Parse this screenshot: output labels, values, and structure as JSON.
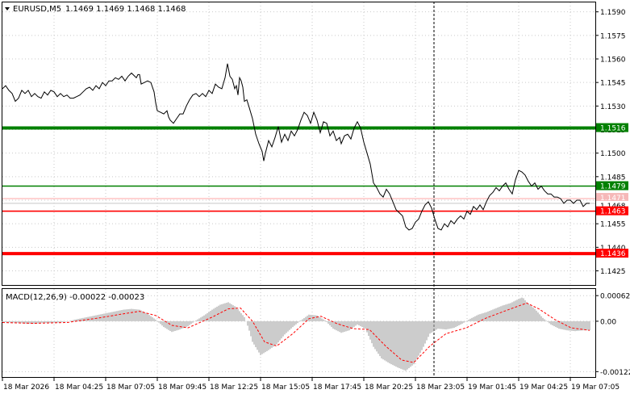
{
  "header": {
    "symbol_label": "EURUSD,M5",
    "ohlc_label": "1.1469 1.1469 1.1468 1.1468"
  },
  "colors": {
    "background": "#ffffff",
    "grid": "#c9c9c9",
    "price_line": "#000000",
    "green_level": "#008000",
    "red_level": "#ff0000",
    "macd_histogram": "#c0c0c0",
    "macd_signal": "#ff0000"
  },
  "price_axis": {
    "ticks": [
      "1.1590",
      "1.1575",
      "1.1560",
      "1.1545",
      "1.1530",
      "1.1515",
      "1.1500",
      "1.1485",
      "1.1470",
      "1.1455",
      "1.1440",
      "1.1425"
    ]
  },
  "levels": [
    {
      "value": "1.1516",
      "color": "green",
      "weight": "thick"
    },
    {
      "value": "1.1479",
      "color": "green",
      "weight": "thin"
    },
    {
      "value": "1.1471",
      "color": "red",
      "weight": "faint"
    },
    {
      "value": "1.1468",
      "color": "gray",
      "weight": "current"
    },
    {
      "value": "1.1463",
      "color": "red",
      "weight": "thin"
    },
    {
      "value": "1.1436",
      "color": "red",
      "weight": "thick"
    }
  ],
  "time_axis": {
    "labels": [
      "18 Mar 2026",
      "18 Mar 04:25",
      "18 Mar 07:05",
      "18 Mar 09:45",
      "18 Mar 12:25",
      "18 Mar 15:05",
      "18 Mar 17:45",
      "18 Mar 20:25",
      "18 Mar 23:05",
      "19 Mar 01:45",
      "19 Mar 04:25",
      "19 Mar 07:05"
    ]
  },
  "macd": {
    "title": "MACD(12,26,9) -0.00022 -0.00023",
    "ticks": [
      "0.00062",
      "0.00",
      "-0.00122"
    ]
  },
  "chart_data": [
    {
      "type": "line",
      "x_axis": "time",
      "x": [
        "18 Mar 2026",
        "18 Mar 04:25",
        "18 Mar 07:05",
        "18 Mar 09:45",
        "18 Mar 12:25",
        "18 Mar 15:05",
        "18 Mar 17:45",
        "18 Mar 20:25",
        "18 Mar 23:05",
        "19 Mar 01:45",
        "19 Mar 04:25",
        "19 Mar 07:05"
      ],
      "price_path": [
        [
          0,
          1.1541
        ],
        [
          4,
          1.1543
        ],
        [
          8,
          1.154
        ],
        [
          12,
          1.1538
        ],
        [
          16,
          1.1533
        ],
        [
          20,
          1.1535
        ],
        [
          24,
          1.154
        ],
        [
          28,
          1.1538
        ],
        [
          32,
          1.154
        ],
        [
          36,
          1.1536
        ],
        [
          40,
          1.1538
        ],
        [
          44,
          1.1536
        ],
        [
          48,
          1.1535
        ],
        [
          52,
          1.1539
        ],
        [
          56,
          1.1537
        ],
        [
          60,
          1.154
        ],
        [
          64,
          1.1539
        ],
        [
          68,
          1.1536
        ],
        [
          72,
          1.1538
        ],
        [
          76,
          1.1536
        ],
        [
          80,
          1.1537
        ],
        [
          84,
          1.1535
        ],
        [
          88,
          1.1535
        ],
        [
          92,
          1.1536
        ],
        [
          96,
          1.1537
        ],
        [
          100,
          1.1539
        ],
        [
          104,
          1.1541
        ],
        [
          108,
          1.1542
        ],
        [
          112,
          1.154
        ],
        [
          116,
          1.1543
        ],
        [
          120,
          1.1541
        ],
        [
          124,
          1.1545
        ],
        [
          128,
          1.1543
        ],
        [
          132,
          1.1546
        ],
        [
          136,
          1.1546
        ],
        [
          140,
          1.1548
        ],
        [
          144,
          1.1547
        ],
        [
          148,
          1.1549
        ],
        [
          152,
          1.1546
        ],
        [
          156,
          1.1549
        ],
        [
          160,
          1.1551
        ],
        [
          164,
          1.1549
        ],
        [
          166,
          1.1548
        ],
        [
          168,
          1.155
        ],
        [
          170,
          1.155
        ],
        [
          172,
          1.1544
        ],
        [
          176,
          1.1545
        ],
        [
          180,
          1.1546
        ],
        [
          184,
          1.1545
        ],
        [
          188,
          1.1539
        ],
        [
          190,
          1.1532
        ],
        [
          192,
          1.1527
        ],
        [
          196,
          1.1526
        ],
        [
          200,
          1.1525
        ],
        [
          204,
          1.1527
        ],
        [
          206,
          1.1523
        ],
        [
          208,
          1.1521
        ],
        [
          212,
          1.1519
        ],
        [
          216,
          1.1522
        ],
        [
          220,
          1.1525
        ],
        [
          224,
          1.1525
        ],
        [
          228,
          1.153
        ],
        [
          232,
          1.1534
        ],
        [
          236,
          1.1537
        ],
        [
          240,
          1.1538
        ],
        [
          244,
          1.1536
        ],
        [
          248,
          1.1538
        ],
        [
          252,
          1.1536
        ],
        [
          256,
          1.154
        ],
        [
          260,
          1.1538
        ],
        [
          264,
          1.1544
        ],
        [
          268,
          1.1542
        ],
        [
          272,
          1.1541
        ],
        [
          276,
          1.1548
        ],
        [
          279,
          1.1557
        ],
        [
          282,
          1.1549
        ],
        [
          285,
          1.1547
        ],
        [
          288,
          1.1541
        ],
        [
          290,
          1.1543
        ],
        [
          292,
          1.1537
        ],
        [
          294,
          1.1548
        ],
        [
          296,
          1.1546
        ],
        [
          298,
          1.1542
        ],
        [
          300,
          1.1533
        ],
        [
          303,
          1.1534
        ],
        [
          306,
          1.1529
        ],
        [
          310,
          1.1522
        ],
        [
          314,
          1.1512
        ],
        [
          318,
          1.1506
        ],
        [
          322,
          1.1501
        ],
        [
          324,
          1.1495
        ],
        [
          326,
          1.15
        ],
        [
          330,
          1.1508
        ],
        [
          334,
          1.1504
        ],
        [
          338,
          1.151
        ],
        [
          342,
          1.1517
        ],
        [
          346,
          1.1507
        ],
        [
          350,
          1.1512
        ],
        [
          354,
          1.1508
        ],
        [
          358,
          1.1514
        ],
        [
          362,
          1.1511
        ],
        [
          366,
          1.1515
        ],
        [
          370,
          1.1521
        ],
        [
          374,
          1.1526
        ],
        [
          378,
          1.1524
        ],
        [
          382,
          1.1519
        ],
        [
          386,
          1.1526
        ],
        [
          390,
          1.1521
        ],
        [
          394,
          1.1513
        ],
        [
          398,
          1.152
        ],
        [
          402,
          1.1519
        ],
        [
          406,
          1.1511
        ],
        [
          410,
          1.1514
        ],
        [
          414,
          1.1508
        ],
        [
          418,
          1.151
        ],
        [
          420,
          1.1506
        ],
        [
          424,
          1.1511
        ],
        [
          428,
          1.1512
        ],
        [
          432,
          1.1509
        ],
        [
          436,
          1.1516
        ],
        [
          440,
          1.152
        ],
        [
          444,
          1.1516
        ],
        [
          448,
          1.1507
        ],
        [
          452,
          1.15
        ],
        [
          456,
          1.1493
        ],
        [
          460,
          1.1481
        ],
        [
          464,
          1.1478
        ],
        [
          468,
          1.1474
        ],
        [
          472,
          1.1472
        ],
        [
          476,
          1.1477
        ],
        [
          480,
          1.1474
        ],
        [
          484,
          1.1469
        ],
        [
          488,
          1.1464
        ],
        [
          492,
          1.1462
        ],
        [
          496,
          1.146
        ],
        [
          500,
          1.1453
        ],
        [
          504,
          1.1451
        ],
        [
          508,
          1.1452
        ],
        [
          512,
          1.1456
        ],
        [
          516,
          1.1458
        ],
        [
          520,
          1.1463
        ],
        [
          524,
          1.1467
        ],
        [
          528,
          1.1469
        ],
        [
          532,
          1.1465
        ],
        [
          536,
          1.1458
        ],
        [
          540,
          1.1452
        ],
        [
          544,
          1.1451
        ],
        [
          548,
          1.1455
        ],
        [
          552,
          1.1453
        ],
        [
          556,
          1.1457
        ],
        [
          560,
          1.1455
        ],
        [
          564,
          1.1458
        ],
        [
          568,
          1.146
        ],
        [
          572,
          1.1458
        ],
        [
          576,
          1.1463
        ],
        [
          580,
          1.1461
        ],
        [
          584,
          1.1466
        ],
        [
          588,
          1.1464
        ],
        [
          592,
          1.1467
        ],
        [
          596,
          1.1464
        ],
        [
          600,
          1.1469
        ],
        [
          604,
          1.1473
        ],
        [
          608,
          1.1475
        ],
        [
          612,
          1.1478
        ],
        [
          616,
          1.1476
        ],
        [
          620,
          1.1479
        ],
        [
          624,
          1.1481
        ],
        [
          628,
          1.1477
        ],
        [
          632,
          1.1474
        ],
        [
          636,
          1.1483
        ],
        [
          640,
          1.1489
        ],
        [
          644,
          1.1488
        ],
        [
          648,
          1.1486
        ],
        [
          652,
          1.1482
        ],
        [
          656,
          1.1479
        ],
        [
          660,
          1.1481
        ],
        [
          664,
          1.1477
        ],
        [
          668,
          1.1479
        ],
        [
          672,
          1.1476
        ],
        [
          676,
          1.1474
        ],
        [
          680,
          1.1474
        ],
        [
          684,
          1.1472
        ],
        [
          688,
          1.1472
        ],
        [
          692,
          1.1471
        ],
        [
          696,
          1.1468
        ],
        [
          700,
          1.147
        ],
        [
          704,
          1.147
        ],
        [
          708,
          1.1468
        ],
        [
          712,
          1.147
        ],
        [
          716,
          1.147
        ],
        [
          720,
          1.1466
        ],
        [
          724,
          1.1468
        ],
        [
          728,
          1.1468
        ]
      ],
      "ylim": [
        1.1416,
        1.1596
      ]
    },
    {
      "type": "bar",
      "x_axis": "time",
      "ylim": [
        -0.00135,
        0.00078
      ],
      "histogram": [
        [
          0,
          -2e-05
        ],
        [
          10,
          -3e-05
        ],
        [
          20,
          -4e-05
        ],
        [
          30,
          -6e-05
        ],
        [
          40,
          -6e-05
        ],
        [
          50,
          -4e-05
        ],
        [
          60,
          -4e-05
        ],
        [
          70,
          -3e-05
        ],
        [
          80,
          -1e-05
        ],
        [
          90,
          4e-05
        ],
        [
          100,
          8e-05
        ],
        [
          110,
          0.00012
        ],
        [
          120,
          0.00016
        ],
        [
          130,
          0.0002
        ],
        [
          140,
          0.00024
        ],
        [
          150,
          0.00028
        ],
        [
          160,
          0.0003
        ],
        [
          170,
          0.00028
        ],
        [
          180,
          0.00018
        ],
        [
          190,
          4e-05
        ],
        [
          200,
          -0.00014
        ],
        [
          210,
          -0.00026
        ],
        [
          220,
          -0.0002
        ],
        [
          230,
          -0.00012
        ],
        [
          240,
          2e-05
        ],
        [
          250,
          0.00014
        ],
        [
          260,
          0.00028
        ],
        [
          270,
          0.0004
        ],
        [
          280,
          0.00046
        ],
        [
          290,
          0.00034
        ],
        [
          300,
          0.0001
        ],
        [
          305,
          -0.00016
        ],
        [
          310,
          -0.0005
        ],
        [
          320,
          -0.00082
        ],
        [
          330,
          -0.0007
        ],
        [
          340,
          -0.00056
        ],
        [
          350,
          -0.00032
        ],
        [
          360,
          -0.00014
        ],
        [
          370,
          2e-05
        ],
        [
          380,
          0.00016
        ],
        [
          390,
          0.00014
        ],
        [
          400,
          2e-05
        ],
        [
          410,
          -0.00018
        ],
        [
          420,
          -0.00028
        ],
        [
          430,
          -0.00022
        ],
        [
          440,
          -8e-05
        ],
        [
          450,
          -0.00018
        ],
        [
          460,
          -0.00062
        ],
        [
          470,
          -0.0009
        ],
        [
          480,
          -0.00102
        ],
        [
          490,
          -0.00112
        ],
        [
          500,
          -0.0012
        ],
        [
          510,
          -0.00104
        ],
        [
          520,
          -0.0007
        ],
        [
          530,
          -0.0003
        ],
        [
          540,
          -0.00018
        ],
        [
          550,
          -0.0002
        ],
        [
          560,
          -0.00016
        ],
        [
          570,
          -6e-05
        ],
        [
          580,
          6e-05
        ],
        [
          590,
          0.00016
        ],
        [
          600,
          0.00022
        ],
        [
          610,
          0.0003
        ],
        [
          620,
          0.00038
        ],
        [
          630,
          0.00044
        ],
        [
          640,
          0.00054
        ],
        [
          645,
          0.00058
        ],
        [
          650,
          0.00046
        ],
        [
          660,
          0.0003
        ],
        [
          670,
          8e-05
        ],
        [
          680,
          -8e-05
        ],
        [
          690,
          -0.00018
        ],
        [
          700,
          -0.00022
        ],
        [
          710,
          -0.00024
        ],
        [
          720,
          -0.00022
        ],
        [
          728,
          -0.00022
        ]
      ],
      "signal": [
        [
          0,
          -3e-05
        ],
        [
          40,
          -5e-05
        ],
        [
          80,
          -3e-05
        ],
        [
          120,
          8e-05
        ],
        [
          150,
          0.00018
        ],
        [
          170,
          0.00024
        ],
        [
          190,
          0.00014
        ],
        [
          210,
          -0.0001
        ],
        [
          230,
          -0.00016
        ],
        [
          260,
          0.0001
        ],
        [
          280,
          0.0003
        ],
        [
          295,
          0.00032
        ],
        [
          310,
          0.0
        ],
        [
          325,
          -0.0005
        ],
        [
          340,
          -0.0006
        ],
        [
          360,
          -0.0003
        ],
        [
          380,
          6e-05
        ],
        [
          395,
          0.00012
        ],
        [
          415,
          -6e-05
        ],
        [
          435,
          -0.00018
        ],
        [
          455,
          -0.0002
        ],
        [
          475,
          -0.0006
        ],
        [
          495,
          -0.00094
        ],
        [
          510,
          -0.001
        ],
        [
          530,
          -0.0006
        ],
        [
          550,
          -0.0003
        ],
        [
          575,
          -0.00016
        ],
        [
          600,
          8e-05
        ],
        [
          630,
          0.0003
        ],
        [
          650,
          0.00044
        ],
        [
          665,
          0.0003
        ],
        [
          685,
          4e-05
        ],
        [
          705,
          -0.00016
        ],
        [
          728,
          -0.00022
        ]
      ]
    }
  ]
}
